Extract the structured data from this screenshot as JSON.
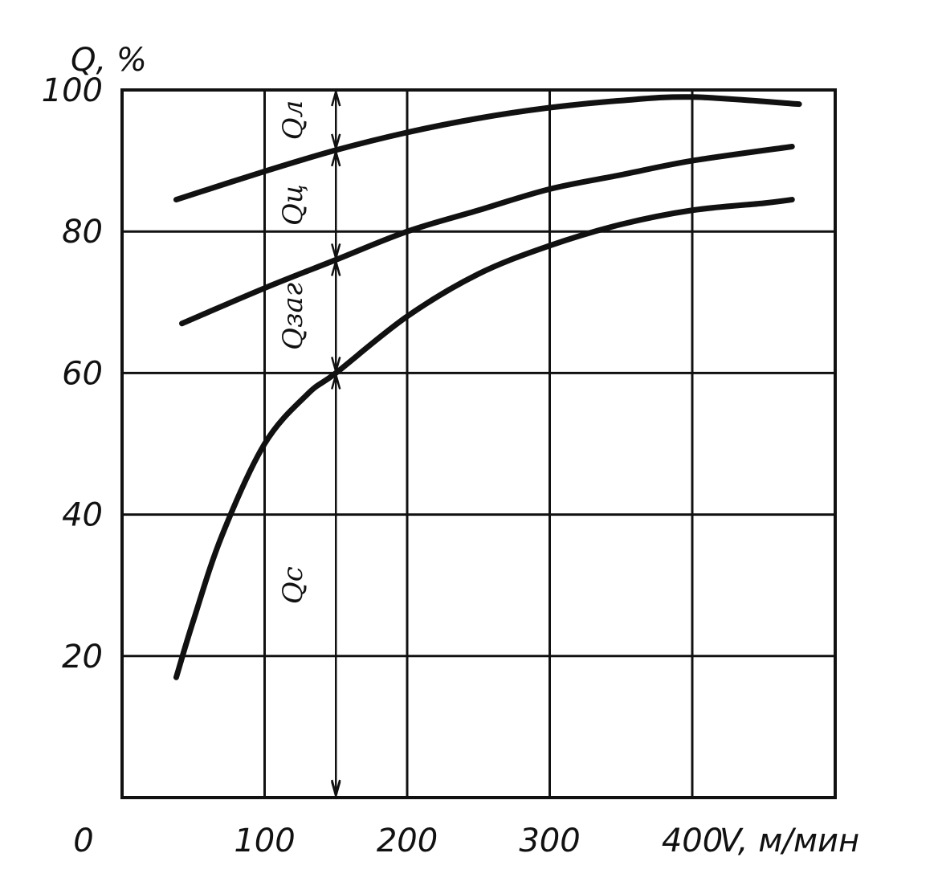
{
  "chart_data": {
    "type": "line",
    "title": "",
    "ylabel": "Q, %",
    "xlabel": "V, м/мин",
    "xlim": [
      0,
      500
    ],
    "ylim": [
      0,
      100
    ],
    "x_ticks": [
      {
        "value": 0,
        "label": "0"
      },
      {
        "value": 100,
        "label": "100"
      },
      {
        "value": 200,
        "label": "200"
      },
      {
        "value": 300,
        "label": "300"
      },
      {
        "value": 400,
        "label": "400"
      }
    ],
    "y_ticks": [
      {
        "value": 20,
        "label": "20"
      },
      {
        "value": 40,
        "label": "40"
      },
      {
        "value": 60,
        "label": "60"
      },
      {
        "value": 80,
        "label": "80"
      },
      {
        "value": 100,
        "label": "100"
      }
    ],
    "grid": true,
    "series": [
      {
        "x": [
          38,
          50,
          70,
          100,
          130,
          150,
          200,
          250,
          300,
          350,
          400,
          450,
          470
        ],
        "y": [
          17,
          25,
          37,
          50,
          57,
          60,
          68,
          74,
          78,
          81,
          83,
          84,
          84.5
        ]
      },
      {
        "x": [
          42,
          100,
          150,
          200,
          250,
          300,
          350,
          400,
          470
        ],
        "y": [
          67,
          72,
          76,
          80,
          83,
          86,
          88,
          90,
          92
        ]
      },
      {
        "x": [
          38,
          100,
          150,
          200,
          250,
          300,
          350,
          400,
          475
        ],
        "y": [
          84.5,
          88.5,
          91.5,
          94,
          96,
          97.5,
          98.5,
          99,
          98
        ]
      }
    ],
    "marker_x": 150,
    "band_labels": [
      "Qл",
      "Qц",
      "Qзаг",
      "Qс"
    ]
  }
}
